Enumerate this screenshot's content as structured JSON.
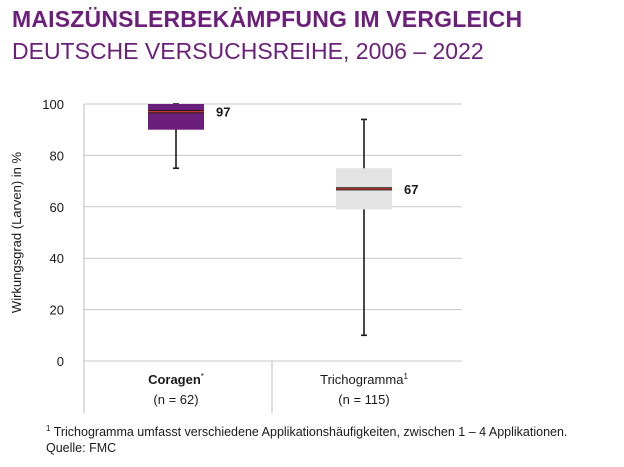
{
  "title": "MAISZÜNSLERBEKÄMPFUNG IM VERGLEICH",
  "subtitle": "DEUTSCHE VERSUCHSREIHE, 2006 – 2022",
  "footnote": {
    "marker": "1",
    "text": " Trichogramma umfasst verschiedene Applikationshäufigkeiten, zwischen 1 – 4 Applikationen.",
    "source": "Quelle: FMC"
  },
  "chart_data": {
    "type": "boxplot",
    "ylabel": "Wirkungsgrad (Larven) in %",
    "ylim": [
      0,
      100
    ],
    "yticks": [
      0,
      20,
      40,
      60,
      80,
      100
    ],
    "grid": true,
    "colors": {
      "primary": "#6b1f7a",
      "median": "#c0392b",
      "secondary_box": "#e3e3e3"
    },
    "series": [
      {
        "name": "Coragen",
        "name_sup": "*",
        "n_label": "(n = 62)",
        "whisker_low": 75,
        "q1": 90,
        "median": 97,
        "q3": 100,
        "whisker_high": 100,
        "median_label": "97",
        "box_color": "#6b1f7a",
        "bold": true
      },
      {
        "name": "Trichogramma",
        "name_sup": "1",
        "n_label": "(n = 115)",
        "whisker_low": 10,
        "q1": 59,
        "median": 67,
        "q3": 75,
        "whisker_high": 94,
        "median_label": "67",
        "box_color": "#e3e3e3",
        "bold": false
      }
    ]
  }
}
